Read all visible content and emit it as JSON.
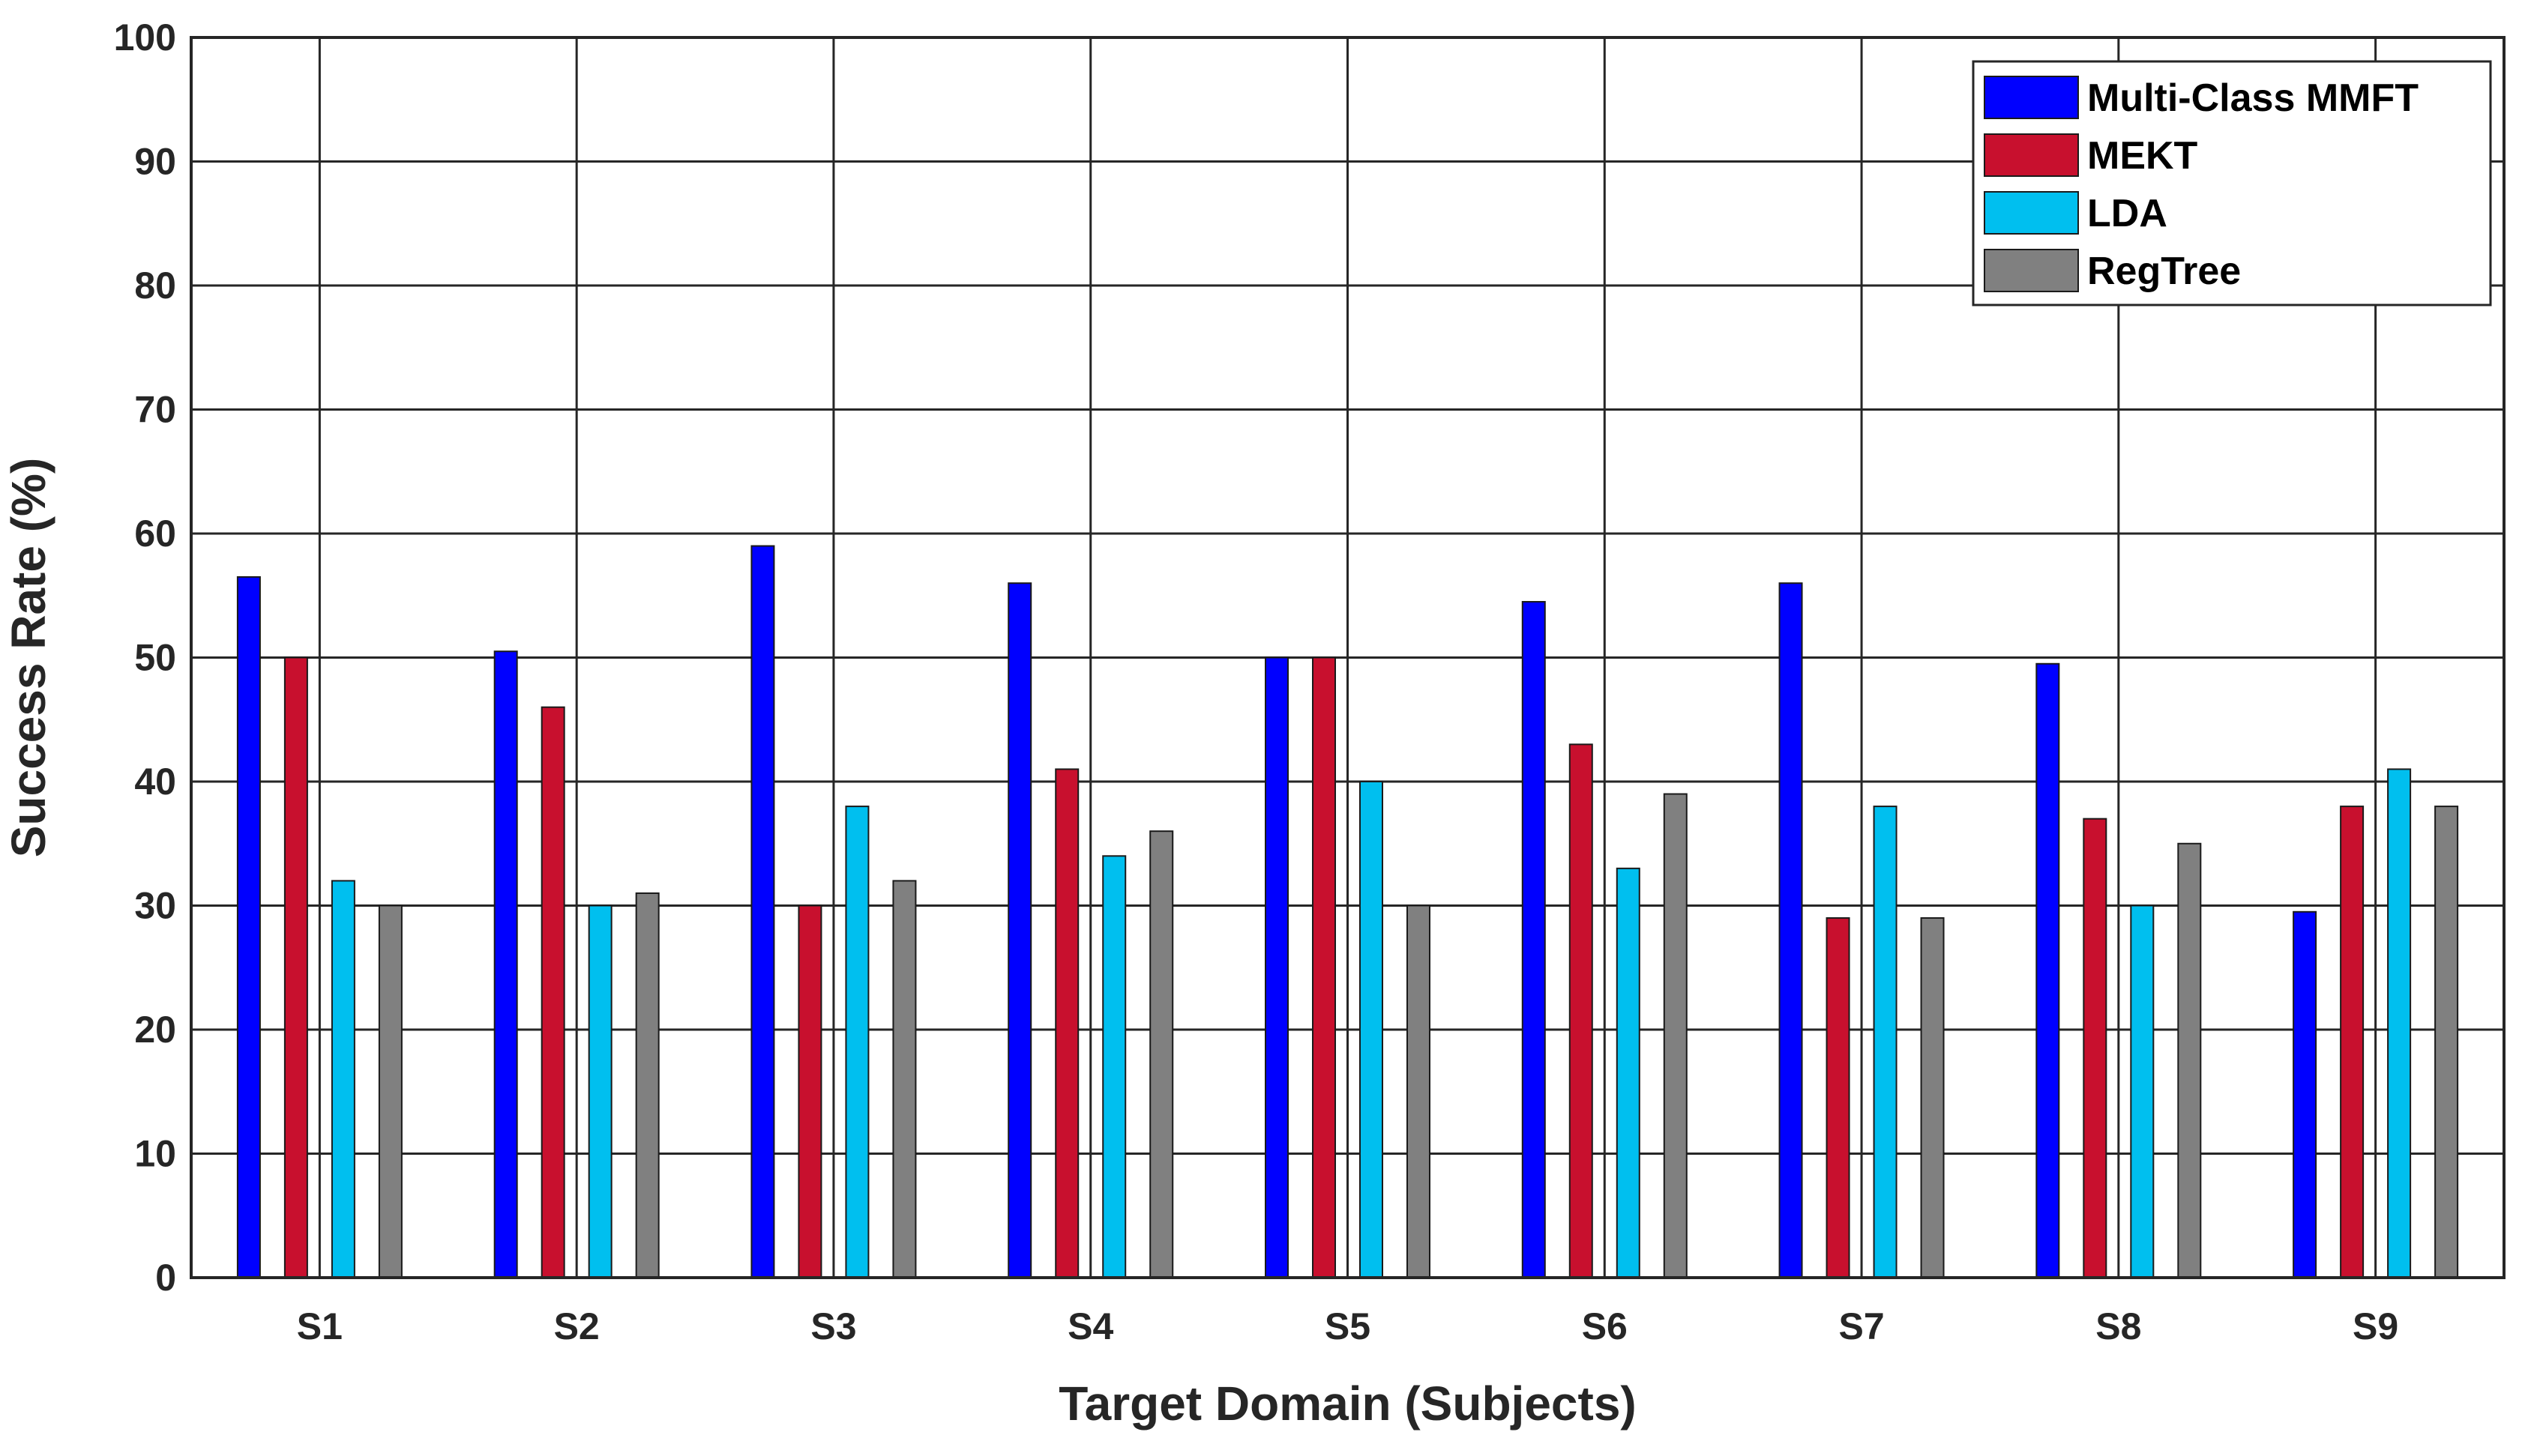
{
  "chart_data": {
    "type": "bar",
    "xlabel": "Target Domain (Subjects)",
    "ylabel": "Success Rate (%)",
    "ylim": [
      0,
      100
    ],
    "yticks": [
      0,
      10,
      20,
      30,
      40,
      50,
      60,
      70,
      80,
      90,
      100
    ],
    "grid": true,
    "legend_position": "top-right",
    "categories": [
      "S1",
      "S2",
      "S3",
      "S4",
      "S5",
      "S6",
      "S7",
      "S8",
      "S9"
    ],
    "series": [
      {
        "name": "Multi-Class MMFT",
        "color": "#0000ff",
        "values": [
          56.5,
          50.5,
          59,
          56,
          50,
          54.5,
          56,
          49.5,
          29.5
        ]
      },
      {
        "name": "MEKT",
        "color": "#c8102e",
        "values": [
          50,
          46,
          30,
          41,
          50,
          43,
          29,
          37,
          38
        ]
      },
      {
        "name": "LDA",
        "color": "#00bfef",
        "values": [
          32,
          30,
          38,
          34,
          40,
          33,
          38,
          30,
          41
        ]
      },
      {
        "name": "RegTree",
        "color": "#808080",
        "values": [
          30,
          31,
          32,
          36,
          30,
          39,
          29,
          35,
          38
        ]
      }
    ]
  }
}
